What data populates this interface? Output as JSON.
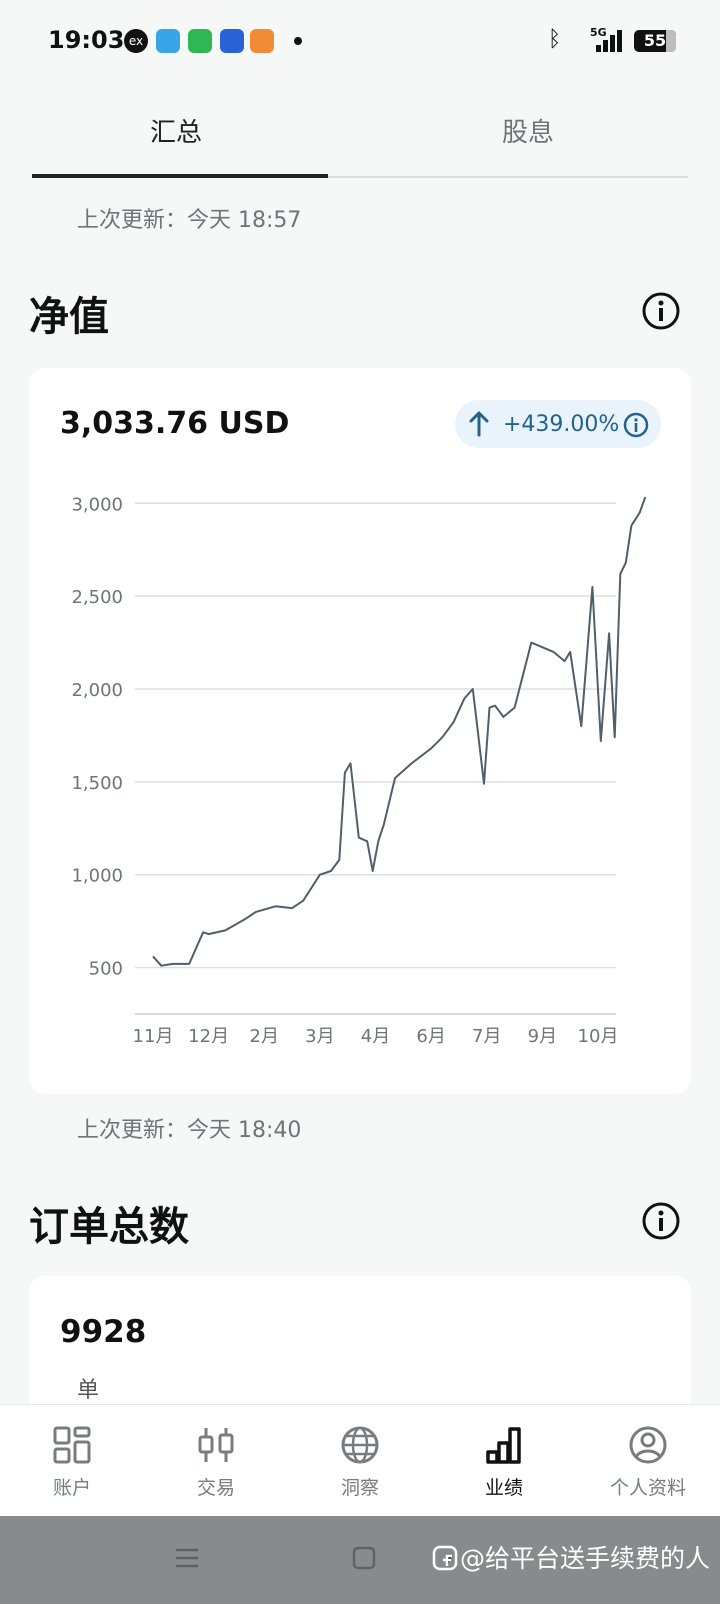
{
  "status_bar": {
    "time": "19:03",
    "network": "5G",
    "battery": "55"
  },
  "tabs": [
    {
      "label": "汇总",
      "active": true
    },
    {
      "label": "股息",
      "active": false
    }
  ],
  "net_value_section": {
    "last_update": "上次更新：今天 18:57",
    "title": "净值",
    "value": "3,033.76 USD",
    "change": "+439.00%"
  },
  "chart_data": {
    "type": "line",
    "title": "",
    "xlabel": "",
    "ylabel": "",
    "x_ticks": [
      "11月",
      "12月",
      "2月",
      "3月",
      "4月",
      "6月",
      "7月",
      "9月",
      "10月"
    ],
    "y_ticks": [
      "500",
      "1,000",
      "1,500",
      "2,000",
      "2,500",
      "3,000"
    ],
    "ylim": [
      250,
      3050
    ],
    "grid": true,
    "series": [
      {
        "x": [
          0,
          0.15,
          0.35,
          0.65,
          0.9,
          1.0,
          1.3,
          1.65,
          1.85,
          2.2,
          2.5,
          2.7,
          3.0,
          3.2,
          3.35,
          3.45,
          3.55,
          3.7,
          3.85,
          3.95,
          4.05,
          4.15,
          4.35,
          4.65,
          5.0,
          5.2,
          5.4,
          5.6,
          5.75,
          5.95,
          6.05,
          6.15,
          6.3,
          6.5,
          6.8,
          7.2,
          7.4,
          7.5,
          7.7,
          7.9,
          8.05,
          8.2,
          8.3,
          8.4,
          8.5,
          8.6,
          8.75,
          8.85
        ],
        "y": [
          560,
          510,
          520,
          520,
          690,
          680,
          700,
          760,
          800,
          830,
          820,
          860,
          1000,
          1020,
          1080,
          1550,
          1600,
          1200,
          1180,
          1020,
          1180,
          1270,
          1520,
          1600,
          1680,
          1740,
          1820,
          1950,
          2000,
          1490,
          1900,
          1910,
          1850,
          1900,
          2250,
          2200,
          2150,
          2200,
          1800,
          2550,
          1720,
          2300,
          1740,
          2620,
          2680,
          2880,
          2950,
          3033.76
        ]
      }
    ]
  },
  "orders_section": {
    "last_update": "上次更新：今天 18:40",
    "title": "订单总数",
    "count": "9928",
    "unit": "单"
  },
  "bottom_nav": [
    {
      "label": "账户",
      "icon": "dashboard-icon",
      "active": false
    },
    {
      "label": "交易",
      "icon": "candlestick-icon",
      "active": false
    },
    {
      "label": "洞察",
      "icon": "globe-icon",
      "active": false
    },
    {
      "label": "业绩",
      "icon": "bar-chart-icon",
      "active": true
    },
    {
      "label": "个人资料",
      "icon": "profile-icon",
      "active": false
    }
  ],
  "watermark": "@给平台送手续费的人"
}
